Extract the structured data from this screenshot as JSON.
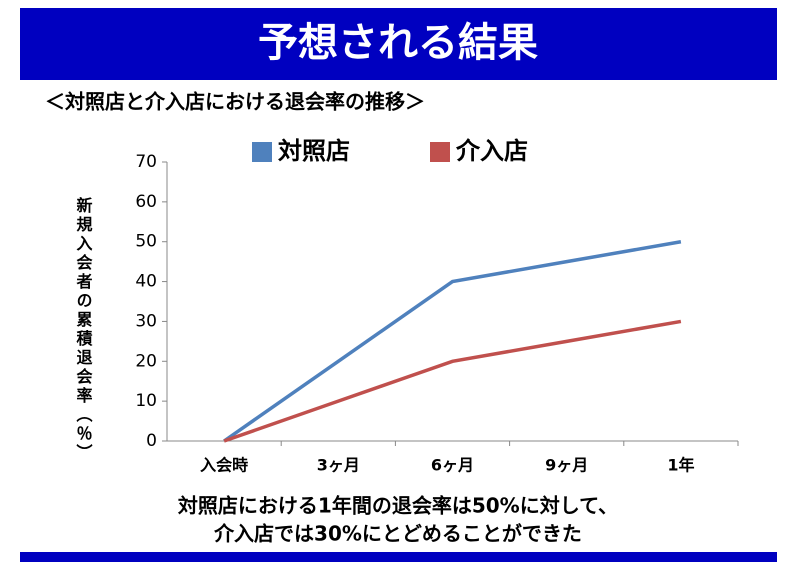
{
  "header": {
    "title": "予想される結果"
  },
  "chart_data": {
    "type": "line",
    "title": "＜対照店と介入店における退会率の推移＞",
    "y_label": "新規入会者の累積退会率（％）",
    "categories": [
      "入会時",
      "3ヶ月",
      "6ヶ月",
      "9ヶ月",
      "1年"
    ],
    "series": [
      {
        "name": "対照店",
        "color": "#4f81bd",
        "values": [
          0,
          20,
          40,
          45,
          50
        ]
      },
      {
        "name": "介入店",
        "color": "#c0504d",
        "values": [
          0,
          10,
          20,
          25,
          30
        ]
      }
    ],
    "ylim": [
      0,
      70
    ],
    "yticks": [
      0,
      10,
      20,
      30,
      40,
      50,
      60,
      70
    ],
    "grid": false,
    "legend": "top"
  },
  "footer": {
    "lines": [
      "対照店における1年間の退会率は50%に対して、",
      "介入店では30%にとどめることができた"
    ]
  }
}
